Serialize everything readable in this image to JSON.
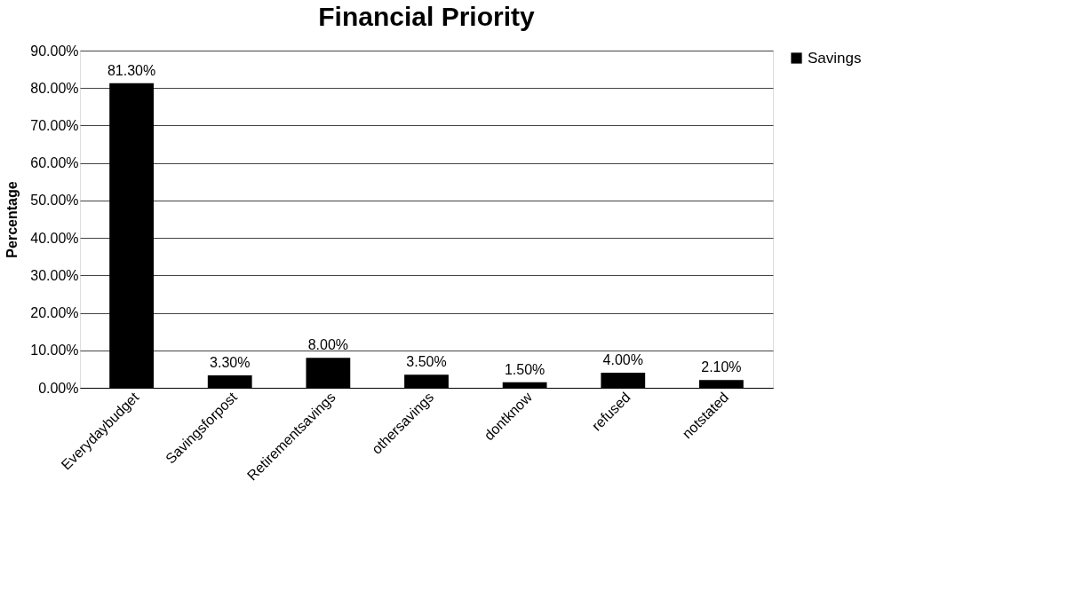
{
  "chart_data": {
    "type": "bar",
    "title": "Financial Priority",
    "ylabel": "Percentage",
    "categories": [
      "Everydaybudget",
      "Savingsforpost",
      "Retirementsavings",
      "othersavings",
      "dontknow",
      "refused",
      "notstated"
    ],
    "series": [
      {
        "name": "Savings",
        "color": "#000000",
        "values": [
          81.3,
          3.3,
          8.0,
          3.5,
          1.5,
          4.0,
          2.1
        ],
        "value_labels": [
          "81.30%",
          "3.30%",
          "8.00%",
          "3.50%",
          "1.50%",
          "4.00%",
          "2.10%"
        ]
      }
    ],
    "ylim": [
      0,
      90
    ],
    "yticks": [
      {
        "value": 0,
        "label": "0.00%"
      },
      {
        "value": 10,
        "label": "10.00%"
      },
      {
        "value": 20,
        "label": "20.00%"
      },
      {
        "value": 30,
        "label": "30.00%"
      },
      {
        "value": 40,
        "label": "40.00%"
      },
      {
        "value": 50,
        "label": "50.00%"
      },
      {
        "value": 60,
        "label": "60.00%"
      },
      {
        "value": 70,
        "label": "70.00%"
      },
      {
        "value": 80,
        "label": "80.00%"
      },
      {
        "value": 90,
        "label": "90.00%"
      }
    ],
    "grid": "y",
    "legend": "right"
  }
}
